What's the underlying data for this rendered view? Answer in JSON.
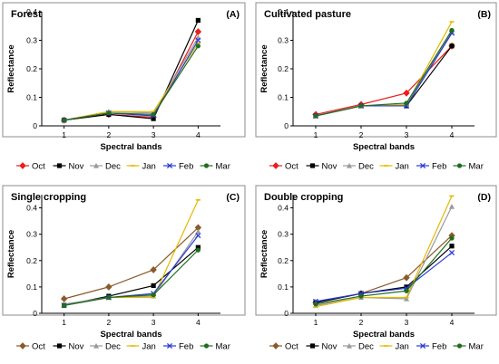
{
  "chart_data": [
    {
      "type": "line",
      "title": "Forest",
      "panel_label": "(A)",
      "xlabel": "Spectral bands",
      "ylabel": "Reflectance",
      "x": [
        1,
        2,
        3,
        4
      ],
      "x_tick_labels": [
        "1",
        "2",
        "3",
        "4"
      ],
      "ylim": [
        0,
        0.4
      ],
      "y_ticks": [
        0,
        0.1,
        0.2,
        0.3,
        0.4
      ],
      "y_tick_labels": [
        "0",
        "0.1",
        "0.2",
        "0.3",
        "0.4"
      ],
      "grid": false,
      "legend_position": "bottom",
      "series": [
        {
          "name": "Oct",
          "color": "#ee1c1c",
          "marker": "diamond",
          "values": [
            0.02,
            0.04,
            0.03,
            0.33
          ]
        },
        {
          "name": "Nov",
          "color": "#000000",
          "marker": "square",
          "values": [
            0.02,
            0.04,
            0.025,
            0.37
          ]
        },
        {
          "name": "Dec",
          "color": "#9a9a9a",
          "marker": "triangle",
          "values": [
            0.02,
            0.05,
            0.045,
            0.31
          ]
        },
        {
          "name": "Jan",
          "color": "#e6b800",
          "marker": "line",
          "values": [
            0.02,
            0.05,
            0.05,
            0.29
          ]
        },
        {
          "name": "Feb",
          "color": "#2a3bd6",
          "marker": "x",
          "values": [
            0.02,
            0.045,
            0.035,
            0.3
          ]
        },
        {
          "name": "Mar",
          "color": "#1e6e1e",
          "marker": "circle",
          "values": [
            0.02,
            0.045,
            0.04,
            0.28
          ]
        }
      ]
    },
    {
      "type": "line",
      "title": "Cultivated pasture",
      "panel_label": "(B)",
      "xlabel": "Spectral bands",
      "ylabel": "Reflectance",
      "x": [
        1,
        2,
        3,
        4
      ],
      "x_tick_labels": [
        "1",
        "2",
        "3",
        "4"
      ],
      "ylim": [
        0,
        0.4
      ],
      "y_ticks": [
        0,
        0.1,
        0.2,
        0.3,
        0.4
      ],
      "y_tick_labels": [
        "0",
        "0.1",
        "0.2",
        "0.3",
        "0.4"
      ],
      "grid": false,
      "legend_position": "bottom",
      "series": [
        {
          "name": "Oct",
          "color": "#ee1c1c",
          "marker": "diamond",
          "values": [
            0.04,
            0.075,
            0.115,
            0.28
          ]
        },
        {
          "name": "Nov",
          "color": "#000000",
          "marker": "square",
          "values": [
            0.035,
            0.07,
            0.07,
            0.28
          ]
        },
        {
          "name": "Dec",
          "color": "#9a9a9a",
          "marker": "triangle",
          "values": [
            0.035,
            0.07,
            0.075,
            0.33
          ]
        },
        {
          "name": "Jan",
          "color": "#e6b800",
          "marker": "line",
          "values": [
            0.035,
            0.07,
            0.075,
            0.365
          ]
        },
        {
          "name": "Feb",
          "color": "#2a3bd6",
          "marker": "x",
          "values": [
            0.035,
            0.07,
            0.07,
            0.325
          ]
        },
        {
          "name": "Mar",
          "color": "#1e6e1e",
          "marker": "circle",
          "values": [
            0.035,
            0.07,
            0.08,
            0.335
          ]
        }
      ]
    },
    {
      "type": "line",
      "title": "Single cropping",
      "panel_label": "(C)",
      "xlabel": "Spectral bands",
      "ylabel": "Reflectance",
      "x": [
        1,
        2,
        3,
        4
      ],
      "x_tick_labels": [
        "1",
        "2",
        "3",
        "4"
      ],
      "ylim": [
        0,
        0.45
      ],
      "y_ticks": [
        0,
        0.1,
        0.2,
        0.3,
        0.4
      ],
      "y_tick_labels": [
        "0",
        "0.1",
        "0.2",
        "0.3",
        "0.4"
      ],
      "grid": false,
      "legend_position": "bottom",
      "series": [
        {
          "name": "Oct",
          "color": "#8b5a2b",
          "marker": "diamond",
          "values": [
            0.055,
            0.1,
            0.165,
            0.325
          ]
        },
        {
          "name": "Nov",
          "color": "#000000",
          "marker": "square",
          "values": [
            0.03,
            0.065,
            0.105,
            0.25
          ]
        },
        {
          "name": "Dec",
          "color": "#9a9a9a",
          "marker": "triangle",
          "values": [
            0.035,
            0.06,
            0.065,
            0.31
          ]
        },
        {
          "name": "Jan",
          "color": "#e6b800",
          "marker": "line",
          "values": [
            0.03,
            0.06,
            0.06,
            0.43
          ]
        },
        {
          "name": "Feb",
          "color": "#2a3bd6",
          "marker": "x",
          "values": [
            0.03,
            0.06,
            0.075,
            0.295
          ]
        },
        {
          "name": "Mar",
          "color": "#1e6e1e",
          "marker": "circle",
          "values": [
            0.03,
            0.06,
            0.07,
            0.24
          ]
        }
      ]
    },
    {
      "type": "line",
      "title": "Double cropping",
      "panel_label": "(D)",
      "xlabel": "Spectral bands",
      "ylabel": "Reflectance",
      "x": [
        1,
        2,
        3,
        4
      ],
      "x_tick_labels": [
        "1",
        "2",
        "3",
        "4"
      ],
      "ylim": [
        0,
        0.45
      ],
      "y_ticks": [
        0,
        0.1,
        0.2,
        0.3,
        0.4
      ],
      "y_tick_labels": [
        "0",
        "0.1",
        "0.2",
        "0.3",
        "0.4"
      ],
      "grid": false,
      "legend_position": "bottom",
      "series": [
        {
          "name": "Oct",
          "color": "#8b5a2b",
          "marker": "diamond",
          "values": [
            0.04,
            0.075,
            0.135,
            0.295
          ]
        },
        {
          "name": "Nov",
          "color": "#000000",
          "marker": "square",
          "values": [
            0.04,
            0.075,
            0.1,
            0.255
          ]
        },
        {
          "name": "Dec",
          "color": "#9a9a9a",
          "marker": "triangle",
          "values": [
            0.03,
            0.06,
            0.055,
            0.405
          ]
        },
        {
          "name": "Jan",
          "color": "#e6b800",
          "marker": "line",
          "values": [
            0.025,
            0.06,
            0.06,
            0.445
          ]
        },
        {
          "name": "Feb",
          "color": "#2a3bd6",
          "marker": "x",
          "values": [
            0.045,
            0.075,
            0.095,
            0.23
          ]
        },
        {
          "name": "Mar",
          "color": "#1e6e1e",
          "marker": "circle",
          "values": [
            0.035,
            0.065,
            0.085,
            0.285
          ]
        }
      ]
    }
  ]
}
